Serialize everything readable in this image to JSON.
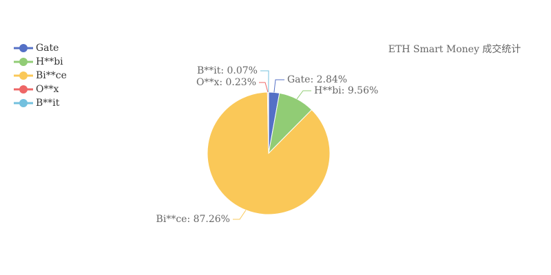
{
  "chart_data": {
    "type": "pie",
    "title": "ETH Smart Money 成交统计",
    "categories": [
      "Gate",
      "H**bi",
      "Bi**ce",
      "O**x",
      "B**it"
    ],
    "values": [
      2.84,
      9.56,
      87.26,
      0.23,
      0.07
    ],
    "value_labels": [
      "Gate: 2.84%",
      "H**bi: 9.56%",
      "Bi**ce: 87.26%",
      "O**x: 0.23%",
      "B**it: 0.07%"
    ],
    "colors": [
      "#5470c6",
      "#91cc75",
      "#fac858",
      "#ee6666",
      "#73c0de"
    ],
    "legend": "top-left"
  }
}
